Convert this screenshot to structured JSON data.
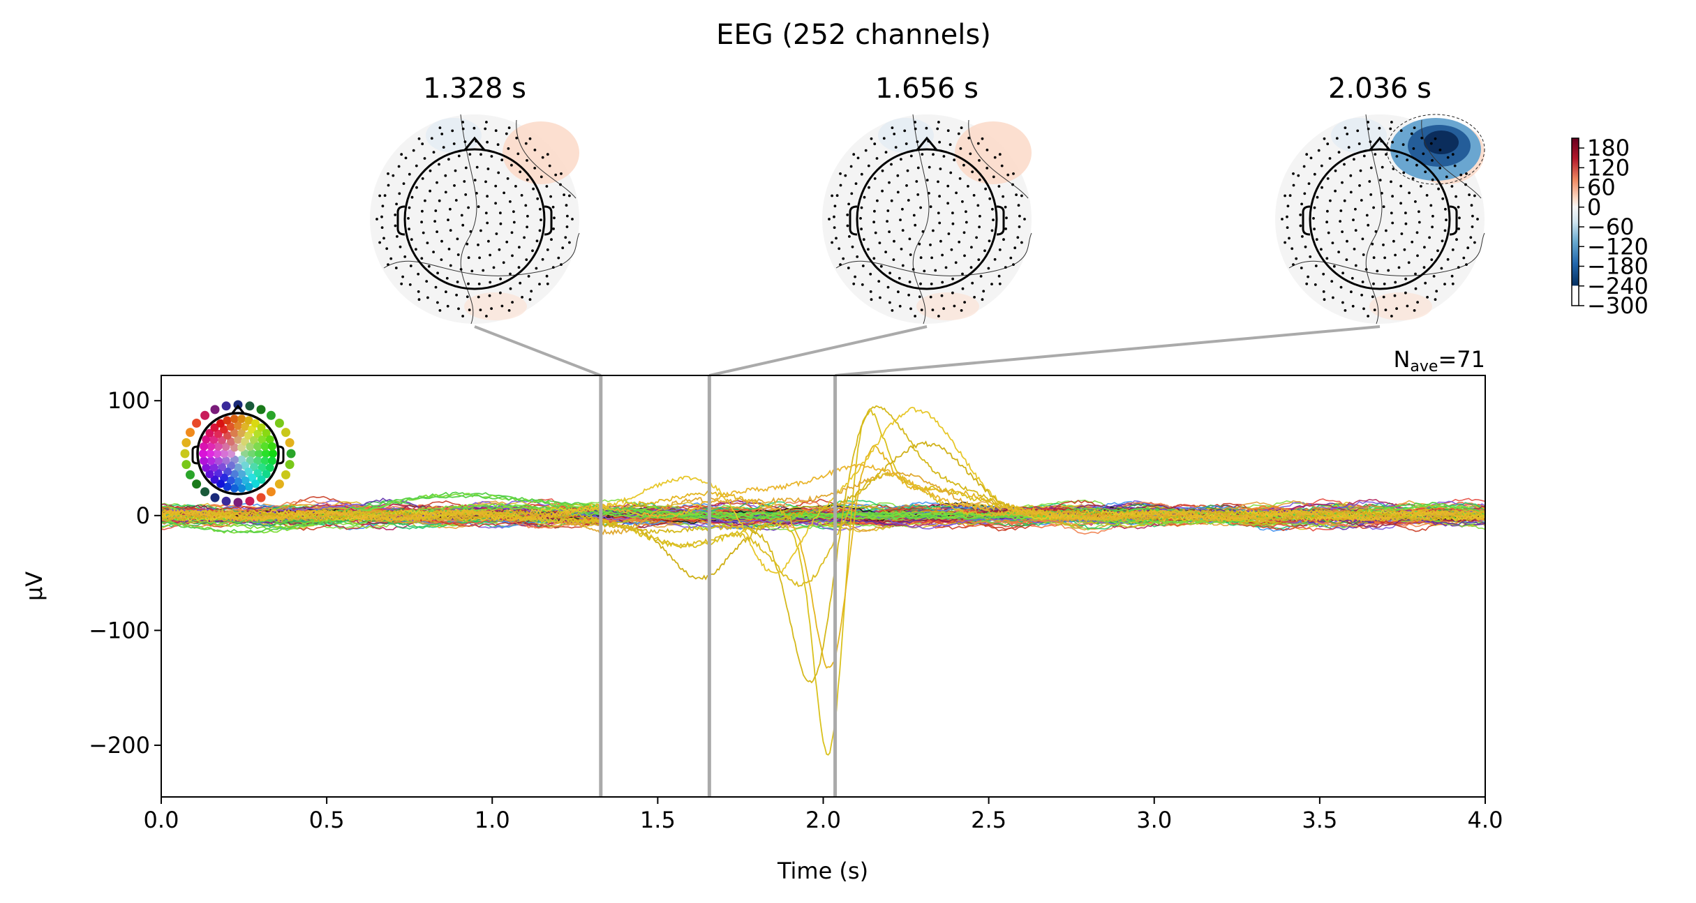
{
  "chart_data": {
    "type": "line",
    "title": "EEG (252 channels)",
    "xlabel": "Time (s)",
    "ylabel": "µV",
    "xlim": [
      0.0,
      4.0
    ],
    "ylim": [
      -245,
      122
    ],
    "x_ticks": [
      "0.0",
      "0.5",
      "1.0",
      "1.5",
      "2.0",
      "2.5",
      "3.0",
      "3.5",
      "4.0"
    ],
    "x_tick_values": [
      0.0,
      0.5,
      1.0,
      1.5,
      2.0,
      2.5,
      3.0,
      3.5,
      4.0
    ],
    "y_ticks": [
      "100",
      "0",
      "−100",
      "−200"
    ],
    "y_tick_values": [
      100,
      0,
      -100,
      -200
    ],
    "nave_label": "N",
    "nave_sub": "ave",
    "nave_value": "=71",
    "topomap_times": [
      1.328,
      1.656,
      2.036
    ],
    "topomap_titles": [
      "1.328 s",
      "1.656 s",
      "2.036 s"
    ],
    "colorbar_ticks": [
      "180",
      "120",
      "60",
      "0",
      "−60",
      "−120",
      "−180",
      "−240",
      "−300"
    ],
    "colorbar_tick_values": [
      180,
      120,
      60,
      0,
      -60,
      -120,
      -180,
      -240,
      -300
    ],
    "colorbar_range": [
      -300,
      210
    ],
    "marker_color": "#aaaaaa",
    "grid": false,
    "series_colors": [
      "#7fdd3a",
      "#c4c41e",
      "#d9b91c",
      "#e39a2a",
      "#f07c48",
      "#e4473c",
      "#b0205a",
      "#8a1a4a",
      "#5a2aa8",
      "#7a55e0",
      "#3c8ff0",
      "#1fc76a",
      "#2ea84a",
      "#f0642e",
      "#c8341c",
      "#111111"
    ]
  }
}
